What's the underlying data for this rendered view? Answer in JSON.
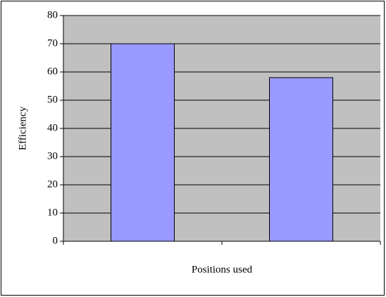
{
  "chart_data": {
    "type": "bar",
    "xlabel": "Positions used",
    "ylabel": "Efficiency",
    "categories": [
      null,
      null
    ],
    "values": [
      70,
      58
    ],
    "color": "#9999ff",
    "background": "#c0c0c0",
    "ylim": [
      0,
      80
    ],
    "yticks": [
      0,
      10,
      20,
      30,
      40,
      50,
      60,
      70,
      80
    ],
    "grid": true
  }
}
